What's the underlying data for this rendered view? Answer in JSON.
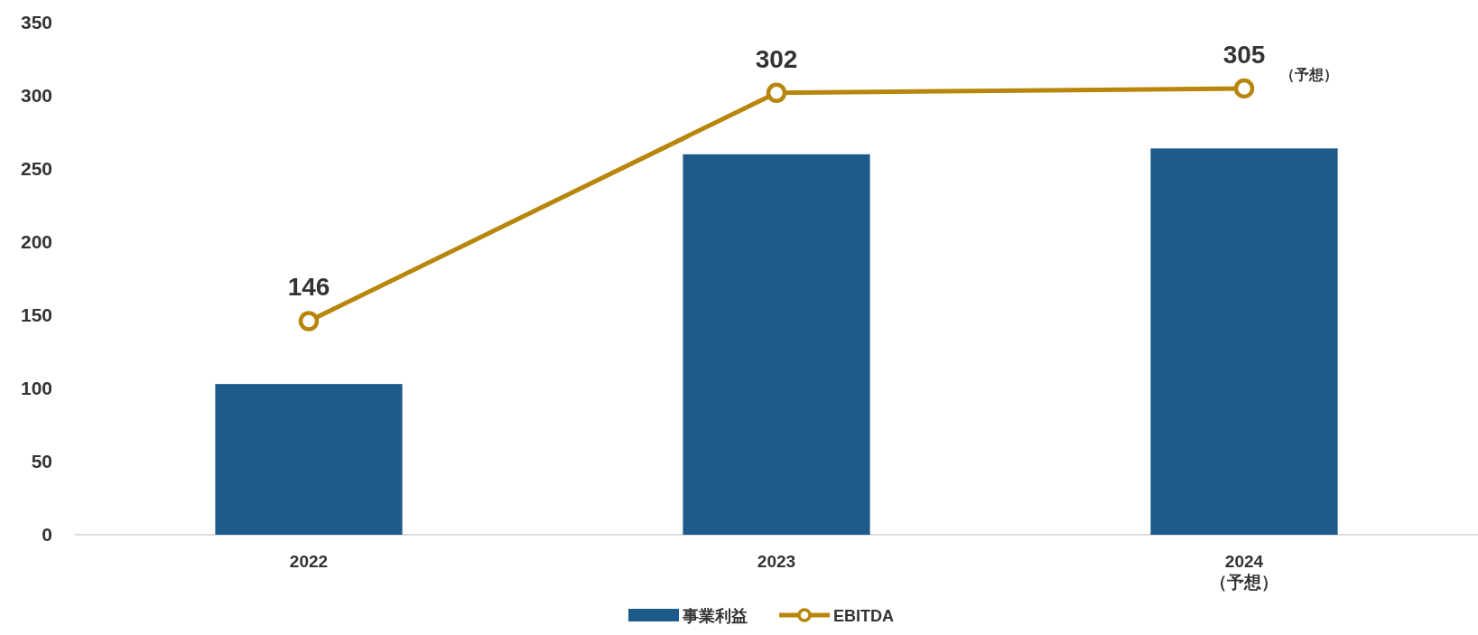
{
  "chart_data": {
    "type": "bar",
    "categories": [
      "2022",
      "2023",
      "2024\n（予想）"
    ],
    "series": [
      {
        "name": "事業利益",
        "color": "#1d5b8a",
        "values": [
          103,
          260,
          264
        ]
      },
      {
        "name": "EBITDA",
        "type": "line",
        "color": "#b8860b",
        "marker": "circle",
        "values": [
          146,
          302,
          305
        ],
        "value_labels": [
          "146",
          "302",
          "305"
        ]
      }
    ],
    "annotations": [
      {
        "text": "（予想）",
        "x": "2024\n（予想）",
        "y": 305
      }
    ],
    "ylim": [
      0,
      350
    ],
    "yticks": [
      0,
      50,
      100,
      150,
      200,
      250,
      300,
      350
    ],
    "grid": false,
    "legend": "bottom"
  }
}
